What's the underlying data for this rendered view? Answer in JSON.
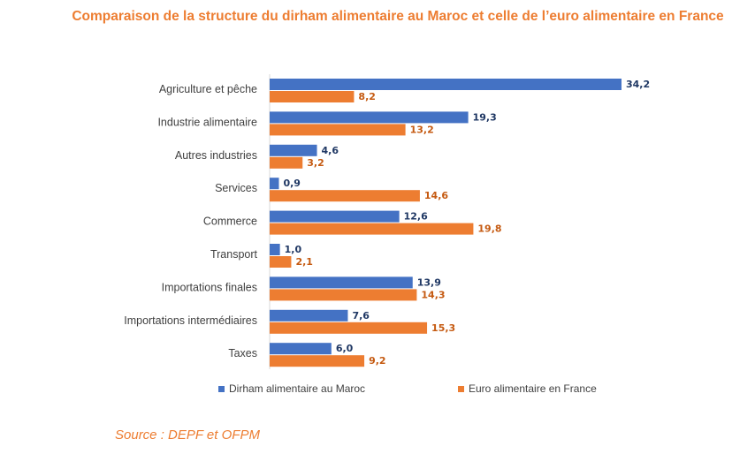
{
  "chart_data": {
    "type": "bar",
    "orientation": "horizontal",
    "title": "Comparaison de la structure du dirham alimentaire au Maroc et celle de l’euro alimentaire en France",
    "categories": [
      "Agriculture et pêche",
      "Industrie alimentaire",
      "Autres industries",
      "Services",
      "Commerce",
      "Transport",
      "Importations finales",
      "Importations intermédiaires",
      "Taxes"
    ],
    "series": [
      {
        "name": "Dirham alimentaire au Maroc",
        "color": "#4472C4",
        "values": [
          34.2,
          19.3,
          4.6,
          0.9,
          12.6,
          1.0,
          13.9,
          7.6,
          6.0
        ],
        "labels": [
          "34,2",
          "19,3",
          "4,6",
          "0,9",
          "12,6",
          "1,0",
          "13,9",
          "7,6",
          "6,0"
        ]
      },
      {
        "name": "Euro alimentaire en France",
        "color": "#ED7D31",
        "values": [
          8.2,
          13.2,
          3.2,
          14.6,
          19.8,
          2.1,
          14.3,
          15.3,
          9.2
        ],
        "labels": [
          "8,2",
          "13,2",
          "3,2",
          "14,6",
          "19,8",
          "2,1",
          "14,3",
          "15,3",
          "9,2"
        ]
      }
    ],
    "xlim": [
      0,
      35
    ],
    "grid": false,
    "legend_position": "bottom"
  },
  "source": "Source : DEPF et OFPM"
}
